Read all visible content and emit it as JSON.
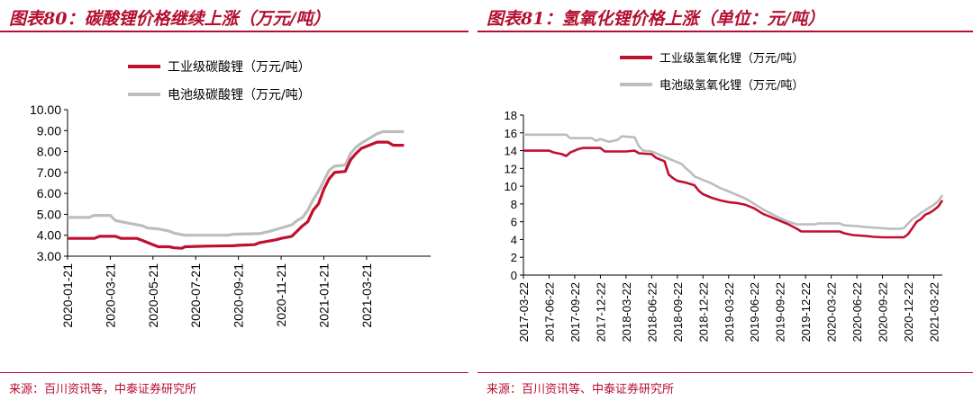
{
  "colors": {
    "accent": "#b40f2f",
    "red_series": "#c0102f",
    "grey_series": "#bdbdbd"
  },
  "chart_data": [
    {
      "type": "line",
      "figure_title": "图表80：碳酸锂价格继续上涨（万元/吨）",
      "source": "来源：百川资讯等，中泰证券研究所",
      "xlabel": "",
      "ylabel": "",
      "ylim": [
        3.0,
        10.0
      ],
      "y_ticks": [
        "3.00",
        "4.00",
        "5.00",
        "6.00",
        "7.00",
        "8.00",
        "9.00",
        "10.00"
      ],
      "x_range": [
        0,
        34
      ],
      "x_ticks": [
        {
          "label": "2020-01-21",
          "x": 0
        },
        {
          "label": "2020-03-21",
          "x": 4
        },
        {
          "label": "2020-05-21",
          "x": 8
        },
        {
          "label": "2020-07-21",
          "x": 12
        },
        {
          "label": "2020-09-21",
          "x": 16
        },
        {
          "label": "2020-11-21",
          "x": 20
        },
        {
          "label": "2021-01-21",
          "x": 24
        },
        {
          "label": "2021-03-21",
          "x": 28
        }
      ],
      "legend": "top-center",
      "series": [
        {
          "name": "工业级碳酸锂（万元/吨）",
          "color": "#c0102f",
          "points": [
            [
              0,
              3.85
            ],
            [
              2.5,
              3.85
            ],
            [
              3,
              3.95
            ],
            [
              4.5,
              3.95
            ],
            [
              5,
              3.85
            ],
            [
              6.5,
              3.85
            ],
            [
              7,
              3.75
            ],
            [
              7.5,
              3.65
            ],
            [
              8,
              3.55
            ],
            [
              8.5,
              3.45
            ],
            [
              9.5,
              3.45
            ],
            [
              10,
              3.4
            ],
            [
              10.7,
              3.38
            ],
            [
              11,
              3.45
            ],
            [
              13,
              3.48
            ],
            [
              15.5,
              3.5
            ],
            [
              16,
              3.52
            ],
            [
              17.5,
              3.55
            ],
            [
              18,
              3.65
            ],
            [
              19.5,
              3.78
            ],
            [
              20,
              3.85
            ],
            [
              21,
              3.95
            ],
            [
              21.5,
              4.2
            ],
            [
              22,
              4.45
            ],
            [
              22.5,
              4.65
            ],
            [
              23,
              5.2
            ],
            [
              23.5,
              5.5
            ],
            [
              24,
              6.2
            ],
            [
              24.5,
              6.7
            ],
            [
              25,
              7.0
            ],
            [
              26,
              7.05
            ],
            [
              26.5,
              7.6
            ],
            [
              27,
              7.9
            ],
            [
              27.5,
              8.15
            ],
            [
              28,
              8.25
            ],
            [
              28.5,
              8.35
            ],
            [
              29,
              8.45
            ],
            [
              30,
              8.45
            ],
            [
              30.5,
              8.3
            ],
            [
              31.5,
              8.3
            ]
          ]
        },
        {
          "name": "电池级碳酸锂（万元/吨）",
          "color": "#bdbdbd",
          "points": [
            [
              0,
              4.85
            ],
            [
              2,
              4.85
            ],
            [
              2.5,
              4.95
            ],
            [
              4,
              4.95
            ],
            [
              4.5,
              4.7
            ],
            [
              6,
              4.55
            ],
            [
              7,
              4.45
            ],
            [
              7.5,
              4.35
            ],
            [
              8.5,
              4.3
            ],
            [
              9.5,
              4.2
            ],
            [
              10,
              4.1
            ],
            [
              11,
              4.0
            ],
            [
              15,
              4.0
            ],
            [
              15.5,
              4.05
            ],
            [
              18,
              4.08
            ],
            [
              19,
              4.2
            ],
            [
              20,
              4.35
            ],
            [
              21,
              4.5
            ],
            [
              21.5,
              4.7
            ],
            [
              22,
              4.85
            ],
            [
              22.5,
              5.2
            ],
            [
              23,
              5.7
            ],
            [
              23.5,
              6.1
            ],
            [
              24,
              6.6
            ],
            [
              24.5,
              7.1
            ],
            [
              25,
              7.3
            ],
            [
              26,
              7.35
            ],
            [
              26.5,
              7.9
            ],
            [
              27,
              8.2
            ],
            [
              27.5,
              8.4
            ],
            [
              28,
              8.55
            ],
            [
              28.5,
              8.7
            ],
            [
              29,
              8.85
            ],
            [
              29.5,
              8.95
            ],
            [
              31.5,
              8.95
            ]
          ]
        }
      ]
    },
    {
      "type": "line",
      "figure_title": "图表81：氢氧化锂价格上涨（单位：元/吨）",
      "source": "来源：百川资讯等、中泰证券研究所",
      "xlabel": "",
      "ylabel": "",
      "ylim": [
        0,
        18
      ],
      "y_ticks": [
        "0",
        "2",
        "4",
        "6",
        "8",
        "10",
        "12",
        "14",
        "16",
        "18"
      ],
      "x_range": [
        0,
        49
      ],
      "x_ticks": [
        {
          "label": "2017-03-22",
          "x": 0
        },
        {
          "label": "2017-06-22",
          "x": 3
        },
        {
          "label": "2017-09-22",
          "x": 6
        },
        {
          "label": "2017-12-22",
          "x": 9
        },
        {
          "label": "2018-03-22",
          "x": 12
        },
        {
          "label": "2018-06-22",
          "x": 15
        },
        {
          "label": "2018-09-22",
          "x": 18
        },
        {
          "label": "2018-12-22",
          "x": 21
        },
        {
          "label": "2019-03-22",
          "x": 24
        },
        {
          "label": "2019-06-22",
          "x": 27
        },
        {
          "label": "2019-09-22",
          "x": 30
        },
        {
          "label": "2019-12-22",
          "x": 33
        },
        {
          "label": "2020-03-22",
          "x": 36
        },
        {
          "label": "2020-06-22",
          "x": 39
        },
        {
          "label": "2020-09-22",
          "x": 42
        },
        {
          "label": "2020-12-22",
          "x": 45
        },
        {
          "label": "2021-03-22",
          "x": 48
        }
      ],
      "legend": "top-center",
      "series": [
        {
          "name": "工业级氢氧化锂（万元/吨）",
          "color": "#c0102f",
          "points": [
            [
              0,
              14.0
            ],
            [
              3,
              14.0
            ],
            [
              3.5,
              13.8
            ],
            [
              4.5,
              13.6
            ],
            [
              5,
              13.4
            ],
            [
              5.5,
              13.8
            ],
            [
              6.5,
              14.2
            ],
            [
              7,
              14.3
            ],
            [
              9,
              14.3
            ],
            [
              9.5,
              13.9
            ],
            [
              12,
              13.9
            ],
            [
              13,
              14.0
            ],
            [
              13.5,
              13.7
            ],
            [
              15,
              13.6
            ],
            [
              15.5,
              13.2
            ],
            [
              16,
              13.0
            ],
            [
              16.5,
              12.8
            ],
            [
              17,
              11.3
            ],
            [
              17.5,
              10.9
            ],
            [
              18,
              10.6
            ],
            [
              19,
              10.4
            ],
            [
              20,
              10.1
            ],
            [
              20.5,
              9.5
            ],
            [
              21,
              9.1
            ],
            [
              22,
              8.7
            ],
            [
              23,
              8.4
            ],
            [
              24,
              8.2
            ],
            [
              25,
              8.1
            ],
            [
              26,
              7.9
            ],
            [
              27,
              7.5
            ],
            [
              28,
              6.9
            ],
            [
              29,
              6.5
            ],
            [
              30,
              6.1
            ],
            [
              31,
              5.7
            ],
            [
              32,
              5.2
            ],
            [
              32.5,
              4.9
            ],
            [
              37,
              4.9
            ],
            [
              37.5,
              4.7
            ],
            [
              38.5,
              4.5
            ],
            [
              40,
              4.4
            ],
            [
              41,
              4.3
            ],
            [
              42,
              4.25
            ],
            [
              44.5,
              4.25
            ],
            [
              45,
              4.6
            ],
            [
              45.5,
              5.3
            ],
            [
              46,
              6.0
            ],
            [
              46.5,
              6.3
            ],
            [
              47,
              6.8
            ],
            [
              47.5,
              7.0
            ],
            [
              48,
              7.3
            ],
            [
              48.5,
              7.7
            ],
            [
              49,
              8.4
            ]
          ]
        },
        {
          "name": "电池级氢氧化锂（万元/吨）",
          "color": "#bdbdbd",
          "points": [
            [
              0,
              15.8
            ],
            [
              5,
              15.8
            ],
            [
              5.5,
              15.4
            ],
            [
              8,
              15.4
            ],
            [
              8.5,
              15.1
            ],
            [
              9,
              15.3
            ],
            [
              10,
              15.0
            ],
            [
              11,
              15.2
            ],
            [
              11.5,
              15.6
            ],
            [
              13,
              15.5
            ],
            [
              13.5,
              14.5
            ],
            [
              14,
              14.0
            ],
            [
              15,
              13.9
            ],
            [
              16,
              13.5
            ],
            [
              17,
              13.1
            ],
            [
              18,
              12.7
            ],
            [
              18.5,
              12.5
            ],
            [
              19,
              12.0
            ],
            [
              19.5,
              11.6
            ],
            [
              20,
              11.1
            ],
            [
              21,
              10.7
            ],
            [
              22,
              10.3
            ],
            [
              23,
              9.8
            ],
            [
              24,
              9.4
            ],
            [
              25,
              9.0
            ],
            [
              26,
              8.6
            ],
            [
              27,
              8.0
            ],
            [
              28,
              7.4
            ],
            [
              29,
              6.9
            ],
            [
              30,
              6.4
            ],
            [
              31,
              6.0
            ],
            [
              32,
              5.7
            ],
            [
              34,
              5.7
            ],
            [
              34.5,
              5.8
            ],
            [
              37,
              5.8
            ],
            [
              37.5,
              5.6
            ],
            [
              39,
              5.5
            ],
            [
              40,
              5.4
            ],
            [
              43,
              5.2
            ],
            [
              44,
              5.2
            ],
            [
              44.5,
              5.3
            ],
            [
              45,
              5.8
            ],
            [
              45.5,
              6.3
            ],
            [
              46,
              6.6
            ],
            [
              46.5,
              7.0
            ],
            [
              47,
              7.3
            ],
            [
              47.5,
              7.6
            ],
            [
              48,
              7.9
            ],
            [
              48.5,
              8.3
            ],
            [
              49,
              9.0
            ]
          ]
        }
      ]
    }
  ]
}
